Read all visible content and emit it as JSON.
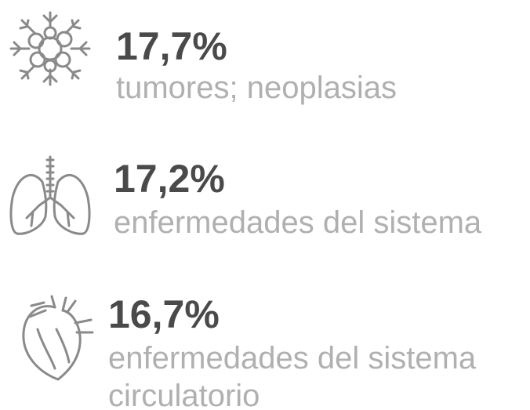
{
  "items": [
    {
      "value": "17,7%",
      "lines": [
        "tumores;  neoplasias"
      ]
    },
    {
      "value": "17,2%",
      "lines": [
        "enfermedades del sistema"
      ]
    },
    {
      "value": "16,7%",
      "lines": [
        "enfermedades del sistema",
        "circulatorio"
      ]
    }
  ]
}
